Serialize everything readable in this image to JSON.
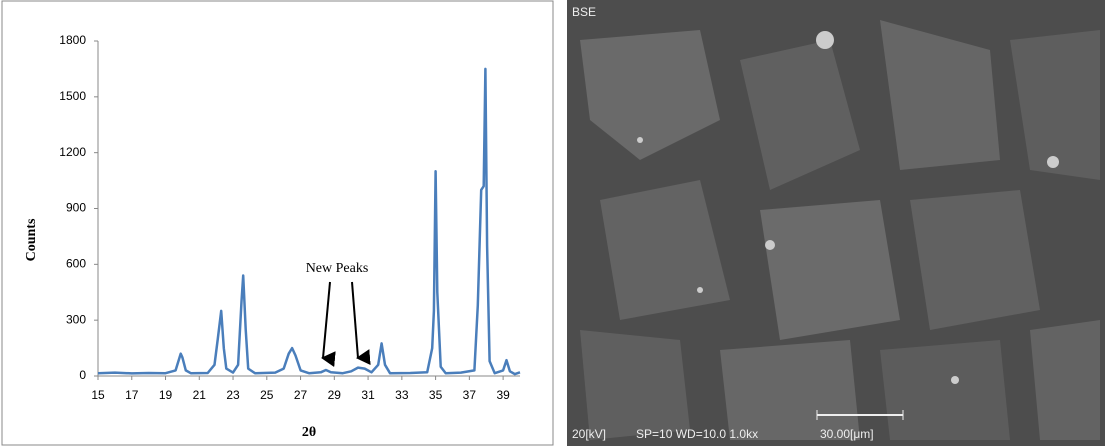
{
  "chart_data": {
    "type": "line",
    "x_label": "2θ",
    "y_label": "Counts",
    "annotation": "New Peaks",
    "color": "#4a7ebb",
    "x": [
      15,
      16,
      17,
      18,
      19,
      19.6,
      19.8,
      19.9,
      20.0,
      20.2,
      20.5,
      21.5,
      21.9,
      22.1,
      22.3,
      22.45,
      22.6,
      23.0,
      23.3,
      23.5,
      23.6,
      23.75,
      23.9,
      24.3,
      25.5,
      26.0,
      26.3,
      26.5,
      26.7,
      27.0,
      27.5,
      28.2,
      28.5,
      28.8,
      29.5,
      30.0,
      30.4,
      30.8,
      31.2,
      31.6,
      31.8,
      32.0,
      32.3,
      33.5,
      34.5,
      34.8,
      34.9,
      35.0,
      35.1,
      35.3,
      35.6,
      36.5,
      37.3,
      37.5,
      37.7,
      37.85,
      37.95,
      38.05,
      38.2,
      38.5,
      39.0,
      39.2,
      39.4,
      39.7,
      40.0
    ],
    "values": [
      15,
      18,
      14,
      16,
      15,
      30,
      90,
      120,
      100,
      30,
      15,
      16,
      60,
      200,
      350,
      150,
      40,
      18,
      60,
      400,
      540,
      250,
      40,
      15,
      18,
      40,
      120,
      150,
      110,
      30,
      15,
      20,
      32,
      20,
      15,
      25,
      45,
      40,
      20,
      60,
      175,
      60,
      15,
      16,
      20,
      150,
      350,
      1100,
      450,
      50,
      15,
      18,
      30,
      380,
      1000,
      1020,
      1650,
      700,
      80,
      15,
      30,
      85,
      25,
      10,
      20
    ],
    "xlim": [
      15,
      40
    ],
    "xticks": [
      15,
      17,
      19,
      21,
      23,
      25,
      27,
      29,
      31,
      33,
      35,
      37,
      39
    ],
    "ylim": [
      0,
      1800
    ],
    "yticks": [
      0,
      300,
      600,
      900,
      1200,
      1500,
      1800
    ]
  },
  "sem_image": {
    "detector": "BSE",
    "voltage": "20[kV]",
    "settings": "SP=10 WD=10.0 1.0kx",
    "scale": "30.00[μm]"
  }
}
